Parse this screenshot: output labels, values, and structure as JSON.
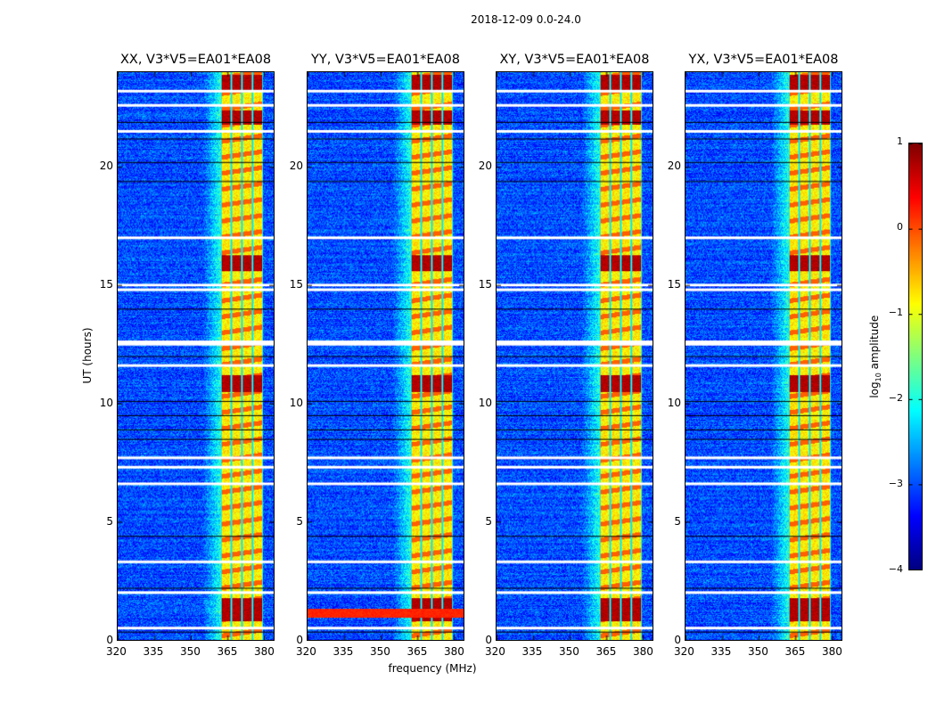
{
  "suptitle": "2018-12-09 0.0-24.0",
  "chart_data": {
    "type": "heatmap",
    "xlabel": "frequency (MHz)",
    "ylabel": "UT (hours)",
    "xlim": [
      320,
      384
    ],
    "ylim": [
      0,
      24
    ],
    "xticks": [
      "320",
      "335",
      "350",
      "365",
      "380"
    ],
    "xtick_values": [
      320,
      335,
      350,
      365,
      380
    ],
    "yticks": [
      "0",
      "5",
      "10",
      "15",
      "20"
    ],
    "ytick_values": [
      0,
      5,
      10,
      15,
      20
    ],
    "colorbar": {
      "label_prefix": "log",
      "label_sub": "10",
      "label_suffix": " amplitude",
      "range": [
        -4,
        1
      ],
      "ticks": [
        "1",
        "0",
        "−1",
        "−2",
        "−3",
        "−4"
      ],
      "tick_values": [
        1,
        0,
        -1,
        -2,
        -3,
        -4
      ],
      "colormap": "jet"
    },
    "panels": [
      {
        "title": "XX, V3*V5=EA01*EA08",
        "strong_rfi_lowfreq": false
      },
      {
        "title": "YY, V3*V5=EA01*EA08",
        "strong_rfi_lowfreq": true
      },
      {
        "title": "XY, V3*V5=EA01*EA08",
        "strong_rfi_lowfreq": false
      },
      {
        "title": "YX, V3*V5=EA01*EA08",
        "strong_rfi_lowfreq": false
      }
    ],
    "rfi_band_mhz": [
      362,
      379.5
    ],
    "strong_rfi_hours": [
      [
        0.8,
        1.8
      ],
      [
        10.5,
        11.2
      ],
      [
        21.8,
        22.4
      ],
      [
        23.2,
        23.9
      ],
      [
        15.6,
        16.3
      ]
    ],
    "flagged_hours": [
      0.5,
      2.0,
      3.3,
      6.6,
      7.3,
      7.7,
      11.6,
      12.5,
      12.6,
      14.8,
      15.0,
      17.0,
      21.5,
      22.6,
      23.2
    ],
    "background_log_amp": -3.0
  }
}
